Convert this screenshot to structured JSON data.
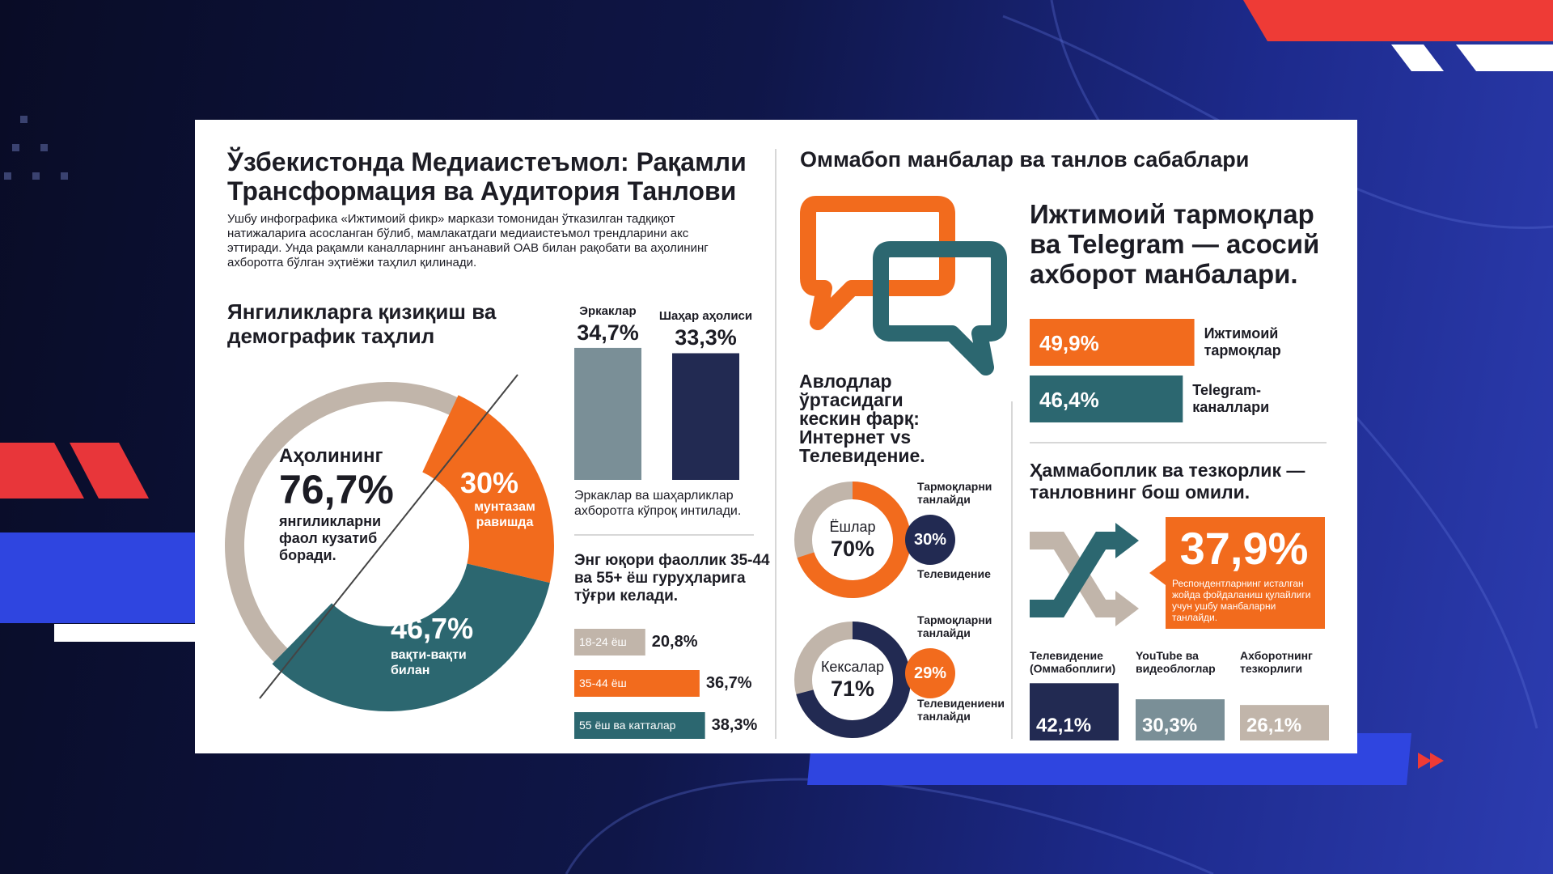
{
  "header": {
    "title": "Ўзбекистонда Медиаистеъмол: Рақамли Трансформация ва Аудитория Танлови",
    "intro": "Ушбу инфографика «Ижтимоий фикр» маркази томонидан ўтказилган тадқиқот натижаларига асосланган бўлиб, мамлакатдаги медиаистеъмол трендларини акс эттиради. Унда рақамли каналларнинг анъанавий ОАВ билан рақобати ва аҳолининг ахборотга бўлган эҳтиёжи таҳлил қилинади."
  },
  "interest": {
    "title": "Янгиликларга қизиқиш ва демографик таҳлил",
    "total": {
      "lead": "Аҳолининг",
      "value": 76.7,
      "label": "76,7%",
      "text": "янгиликларни фаол кузатиб боради.",
      "color": "#c1b5aa"
    },
    "segments": [
      {
        "value": 30,
        "label": "30%",
        "text": "мунтазам равишда",
        "color": "#f26b1d"
      },
      {
        "value": 46.7,
        "label": "46,7%",
        "text": "вақти-вақти билан",
        "color": "#2c6770"
      }
    ]
  },
  "groups": {
    "bars": [
      {
        "name": "Эркаклар",
        "value": 34.7,
        "label": "34,7%",
        "color": "#7a8f97"
      },
      {
        "name": "Шаҳар аҳолиси",
        "value": 33.3,
        "label": "33,3%",
        "color": "#222a52"
      }
    ],
    "note": "Эркаклар ва шаҳарликлар ахборотга кўпроқ интилади."
  },
  "ages": {
    "title": "Энг юқори фаоллик 35-44 ва 55+ ёш гуруҳларига тўғри келади.",
    "bars": [
      {
        "name": "18-24 ёш",
        "value": 20.8,
        "label": "20,8%",
        "color": "#c1b5aa"
      },
      {
        "name": "35-44 ёш",
        "value": 36.7,
        "label": "36,7%",
        "color": "#f26b1d"
      },
      {
        "name": "55 ёш ва катталар",
        "value": 38.3,
        "label": "38,3%",
        "color": "#2c6770"
      }
    ]
  },
  "sources": {
    "title": "Оммабоп манбалар ва танлов сабаблари",
    "headline": "Ижтимоий тармоқлар ва Telegram — асосий ахборот манбалари.",
    "bars": [
      {
        "name": "Ижтимоий тармоқлар",
        "value": 49.9,
        "label": "49,9%",
        "color": "#f26b1d"
      },
      {
        "name": "Telegram-каналлари",
        "value": 46.4,
        "label": "46,4%",
        "color": "#2c6770"
      }
    ]
  },
  "generations": {
    "title": "Авлодлар ўртасидаги кескин фарқ: Интернет vs Телевидение.",
    "groups": [
      {
        "name": "Ёшлар",
        "main": {
          "value": 70,
          "label": "70%",
          "color": "#f26b1d"
        },
        "other": {
          "value": 30,
          "label": "30%",
          "color": "#222a52"
        },
        "captions": [
          "Тармоқларни танлайди",
          "Телевидение"
        ]
      },
      {
        "name": "Кексалар",
        "main": {
          "value": 71,
          "label": "71%",
          "color": "#222a52"
        },
        "other": {
          "value": 29,
          "label": "29%",
          "color": "#f26b1d"
        },
        "captions": [
          "Тармоқларни танлайди",
          "Телевидениени танлайди"
        ]
      }
    ]
  },
  "factors": {
    "title": "Ҳаммабоплик ва тезкорлик — танловнинг бош омили.",
    "highlight": {
      "label": "37,9%",
      "text": "Респондентларнинг исталган жойда фойдаланиш қулайлиги учун ушбу манбаларни танлайди."
    },
    "bars": [
      {
        "name": "Телевидение (Оммабоплиги)",
        "value": 42.1,
        "label": "42,1%",
        "color": "#222a52"
      },
      {
        "name": "YouTube ва видеоблоглар",
        "value": 30.3,
        "label": "30,3%",
        "color": "#7a8f97"
      },
      {
        "name": "Ахборотнинг тезкорлиги",
        "value": 26.1,
        "label": "26,1%",
        "color": "#c1b5aa"
      }
    ]
  }
}
